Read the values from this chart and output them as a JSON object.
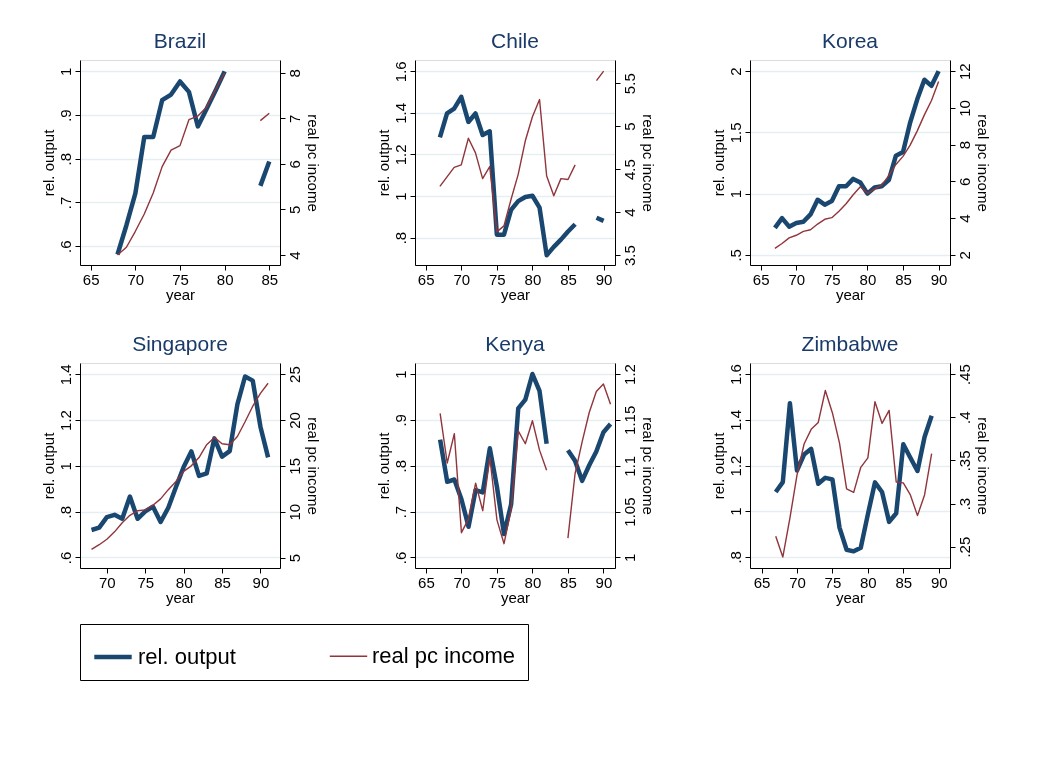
{
  "chart_data": [
    {
      "type": "line",
      "title": "Brazil",
      "xlabel": "year",
      "ylabel": "rel. output",
      "y2label": "real pc income",
      "grid": "y",
      "legend": "bottom",
      "x": [
        68,
        69,
        70,
        71,
        72,
        73,
        74,
        75,
        76,
        77,
        78,
        79,
        80,
        81,
        82,
        83,
        84,
        85
      ],
      "xlim": [
        63.8,
        86.2
      ],
      "xticks": [
        65,
        70,
        75,
        80,
        85
      ],
      "ylim": [
        0.557,
        1.026
      ],
      "yticks": [
        {
          "value": 0.6,
          "label": ".6"
        },
        {
          "value": 0.7,
          "label": ".7"
        },
        {
          "value": 0.8,
          "label": ".8"
        },
        {
          "value": 0.9,
          "label": ".9"
        },
        1
      ],
      "y2lim": [
        3.78,
        8.28
      ],
      "y2ticks": [
        4,
        5,
        6,
        7,
        8
      ],
      "series": [
        {
          "name": "rel. output",
          "color": "#1a476f",
          "values": [
            0.581,
            0.648,
            0.721,
            0.85,
            0.85,
            0.934,
            0.947,
            0.977,
            0.953,
            0.874,
            0.915,
            0.957,
            1.0,
            null,
            null,
            null,
            0.738,
            0.794
          ]
        },
        {
          "name": "real pc income",
          "color": "#90353b",
          "axis": "y2",
          "values": [
            4.0,
            4.17,
            4.52,
            4.9,
            5.36,
            5.94,
            6.3,
            6.4,
            6.97,
            7.05,
            7.25,
            7.64,
            8.0,
            null,
            null,
            null,
            6.95,
            7.11
          ]
        }
      ]
    },
    {
      "type": "line",
      "title": "Chile",
      "xlabel": "year",
      "ylabel": "rel. output",
      "y2label": "real pc income",
      "grid": "y",
      "x": [
        67,
        68,
        69,
        70,
        71,
        72,
        73,
        74,
        75,
        76,
        77,
        78,
        79,
        80,
        81,
        82,
        83,
        84,
        85,
        86,
        87,
        88,
        89,
        90
      ],
      "xlim": [
        63.5,
        91.6
      ],
      "xticks": [
        65,
        70,
        75,
        80,
        85,
        90
      ],
      "ylim": [
        0.668,
        1.654
      ],
      "yticks": [
        {
          "value": 0.8,
          "label": ".8"
        },
        1,
        1.2,
        1.4,
        1.6
      ],
      "y2lim": [
        3.385,
        5.77
      ],
      "y2ticks": [
        3.5,
        4,
        4.5,
        5,
        5.5
      ],
      "series": [
        {
          "color": "#1a476f",
          "values": [
            1.282,
            1.397,
            1.42,
            1.477,
            1.356,
            1.397,
            1.293,
            1.311,
            0.814,
            0.814,
            0.933,
            0.975,
            0.995,
            1.001,
            0.944,
            0.715,
            0.755,
            0.79,
            0.829,
            0.864,
            null,
            null,
            0.895,
            0.88
          ]
        },
        {
          "color": "#90353b",
          "axis": "y2",
          "values": [
            4.3,
            4.41,
            4.52,
            4.55,
            4.86,
            4.69,
            4.39,
            4.53,
            3.77,
            3.84,
            4.15,
            4.44,
            4.83,
            5.11,
            5.31,
            4.42,
            4.19,
            4.39,
            4.38,
            4.55,
            null,
            null,
            5.53,
            5.64
          ]
        }
      ]
    },
    {
      "type": "line",
      "title": "Korea",
      "xlabel": "year",
      "ylabel": "rel. output",
      "y2label": "real pc income",
      "grid": "y",
      "x": [
        67,
        68,
        69,
        70,
        71,
        72,
        73,
        74,
        75,
        76,
        77,
        78,
        79,
        80,
        81,
        82,
        83,
        84,
        85,
        86,
        87,
        88,
        89,
        90
      ],
      "xlim": [
        63.5,
        91.6
      ],
      "xticks": [
        65,
        70,
        75,
        80,
        85,
        90
      ],
      "ylim": [
        0.417,
        2.091
      ],
      "yticks": [
        {
          "value": 0.5,
          "label": ".5"
        },
        1,
        1.5,
        2
      ],
      "y2lim": [
        1.44,
        12.61
      ],
      "y2ticks": [
        2,
        4,
        6,
        8,
        10,
        12
      ],
      "series": [
        {
          "color": "#1a476f",
          "values": [
            0.72,
            0.8,
            0.73,
            0.76,
            0.77,
            0.83,
            0.95,
            0.91,
            0.94,
            1.06,
            1.06,
            1.12,
            1.09,
            1.0,
            1.05,
            1.06,
            1.11,
            1.31,
            1.34,
            1.58,
            1.77,
            1.93,
            1.88,
            2.0
          ]
        },
        {
          "color": "#90353b",
          "axis": "y2",
          "values": [
            2.35,
            2.61,
            2.92,
            3.06,
            3.27,
            3.36,
            3.67,
            3.93,
            4.02,
            4.37,
            4.78,
            5.27,
            5.7,
            5.36,
            5.57,
            5.79,
            6.31,
            6.92,
            7.36,
            7.97,
            8.75,
            9.62,
            10.4,
            11.44
          ]
        }
      ]
    },
    {
      "type": "line",
      "title": "Singapore",
      "xlabel": "year",
      "ylabel": "rel. output",
      "y2label": "real pc income",
      "grid": "y",
      "x": [
        68,
        69,
        70,
        71,
        72,
        73,
        74,
        75,
        76,
        77,
        78,
        79,
        80,
        81,
        82,
        83,
        84,
        85,
        86,
        87,
        88,
        89,
        90,
        91
      ],
      "xlim": [
        66.5,
        92.55
      ],
      "xticks": [
        70,
        75,
        80,
        85,
        90
      ],
      "ylim": [
        0.554,
        1.449
      ],
      "yticks": [
        {
          "value": 0.6,
          "label": ".6"
        },
        {
          "value": 0.8,
          "label": ".8"
        },
        1,
        1.2,
        1.4
      ],
      "y2lim": [
        3.86,
        26.21
      ],
      "y2ticks": [
        5,
        10,
        15,
        20,
        25
      ],
      "series": [
        {
          "color": "#1a476f",
          "values": [
            0.72,
            0.73,
            0.776,
            0.786,
            0.769,
            0.866,
            0.769,
            0.801,
            0.822,
            0.755,
            0.817,
            0.908,
            0.995,
            1.063,
            0.956,
            0.967,
            1.12,
            1.04,
            1.064,
            1.268,
            1.39,
            1.372,
            1.171,
            1.037
          ]
        },
        {
          "color": "#90353b",
          "axis": "y2",
          "values": [
            5.9,
            6.4,
            7.0,
            7.8,
            8.8,
            9.6,
            10.1,
            10.2,
            10.7,
            11.4,
            12.4,
            13.3,
            14.4,
            15.0,
            15.9,
            17.3,
            18.1,
            17.4,
            17.3,
            18.2,
            19.8,
            21.5,
            22.9,
            24.0
          ]
        }
      ]
    },
    {
      "type": "line",
      "title": "Kenya",
      "xlabel": "year",
      "ylabel": "rel. output",
      "y2label": "real pc income",
      "grid": "y",
      "x": [
        67,
        68,
        69,
        70,
        71,
        72,
        73,
        74,
        75,
        76,
        77,
        78,
        79,
        80,
        81,
        82,
        83,
        84,
        85,
        86,
        87,
        88,
        89,
        90,
        91
      ],
      "xlim": [
        63.46,
        91.63
      ],
      "xticks": [
        65,
        70,
        75,
        80,
        85,
        90
      ],
      "ylim": [
        0.577,
        1.024
      ],
      "yticks": [
        {
          "value": 0.6,
          "label": ".6"
        },
        {
          "value": 0.7,
          "label": ".7"
        },
        {
          "value": 0.8,
          "label": ".8"
        },
        {
          "value": 0.9,
          "label": ".9"
        },
        1
      ],
      "y2lim": [
        0.9885,
        1.212
      ],
      "y2ticks": [
        1,
        1.05,
        1.1,
        1.15,
        1.2
      ],
      "series": [
        {
          "color": "#1a476f",
          "values": [
            0.857,
            0.765,
            0.77,
            0.727,
            0.667,
            0.747,
            0.742,
            0.838,
            0.754,
            0.651,
            0.716,
            0.925,
            0.944,
            1.0,
            0.963,
            0.848,
            null,
            null,
            0.834,
            0.811,
            0.767,
            0.801,
            0.831,
            0.873,
            0.891
          ]
        },
        {
          "color": "#90353b",
          "axis": "y2",
          "values": [
            1.157,
            1.103,
            1.135,
            1.027,
            1.042,
            1.081,
            1.051,
            1.109,
            1.041,
            1.015,
            1.053,
            1.138,
            1.124,
            1.149,
            1.117,
            1.095,
            null,
            null,
            1.021,
            1.091,
            1.126,
            1.158,
            1.181,
            1.189,
            1.167
          ]
        }
      ]
    },
    {
      "type": "line",
      "title": "Zimbabwe",
      "xlabel": "year",
      "ylabel": "rel. output",
      "y2label": "real pc income",
      "grid": "y",
      "x": [
        67,
        68,
        69,
        70,
        71,
        72,
        73,
        74,
        75,
        76,
        77,
        78,
        79,
        80,
        81,
        82,
        83,
        84,
        85,
        86,
        87,
        88,
        89
      ],
      "xlim": [
        63.37,
        91.59
      ],
      "xticks": [
        65,
        70,
        75,
        80,
        85,
        90
      ],
      "ylim": [
        0.751,
        1.649
      ],
      "yticks": [
        {
          "value": 0.8,
          "label": ".8"
        },
        1,
        1.2,
        1.4,
        1.6
      ],
      "y2lim": [
        0.2253,
        0.4629
      ],
      "y2ticks": [
        {
          "value": 0.25,
          "label": ".25"
        },
        {
          "value": 0.3,
          "label": ".3"
        },
        {
          "value": 0.35,
          "label": ".35"
        },
        {
          "value": 0.4,
          "label": ".4"
        },
        {
          "value": 0.45,
          "label": ".45"
        }
      ],
      "series": [
        {
          "color": "#1a476f",
          "values": [
            1.084,
            1.127,
            1.473,
            1.178,
            1.248,
            1.273,
            1.12,
            1.146,
            1.139,
            0.928,
            0.831,
            0.824,
            0.84,
            0.986,
            1.126,
            1.084,
            0.953,
            0.991,
            1.293,
            1.234,
            1.176,
            1.325,
            1.418
          ]
        },
        {
          "color": "#90353b",
          "axis": "y2",
          "values": [
            0.262,
            0.238,
            0.283,
            0.333,
            0.369,
            0.386,
            0.394,
            0.431,
            0.405,
            0.37,
            0.317,
            0.313,
            0.342,
            0.353,
            0.418,
            0.393,
            0.408,
            0.325,
            0.324,
            0.31,
            0.286,
            0.31,
            0.358
          ]
        }
      ]
    }
  ]
}
